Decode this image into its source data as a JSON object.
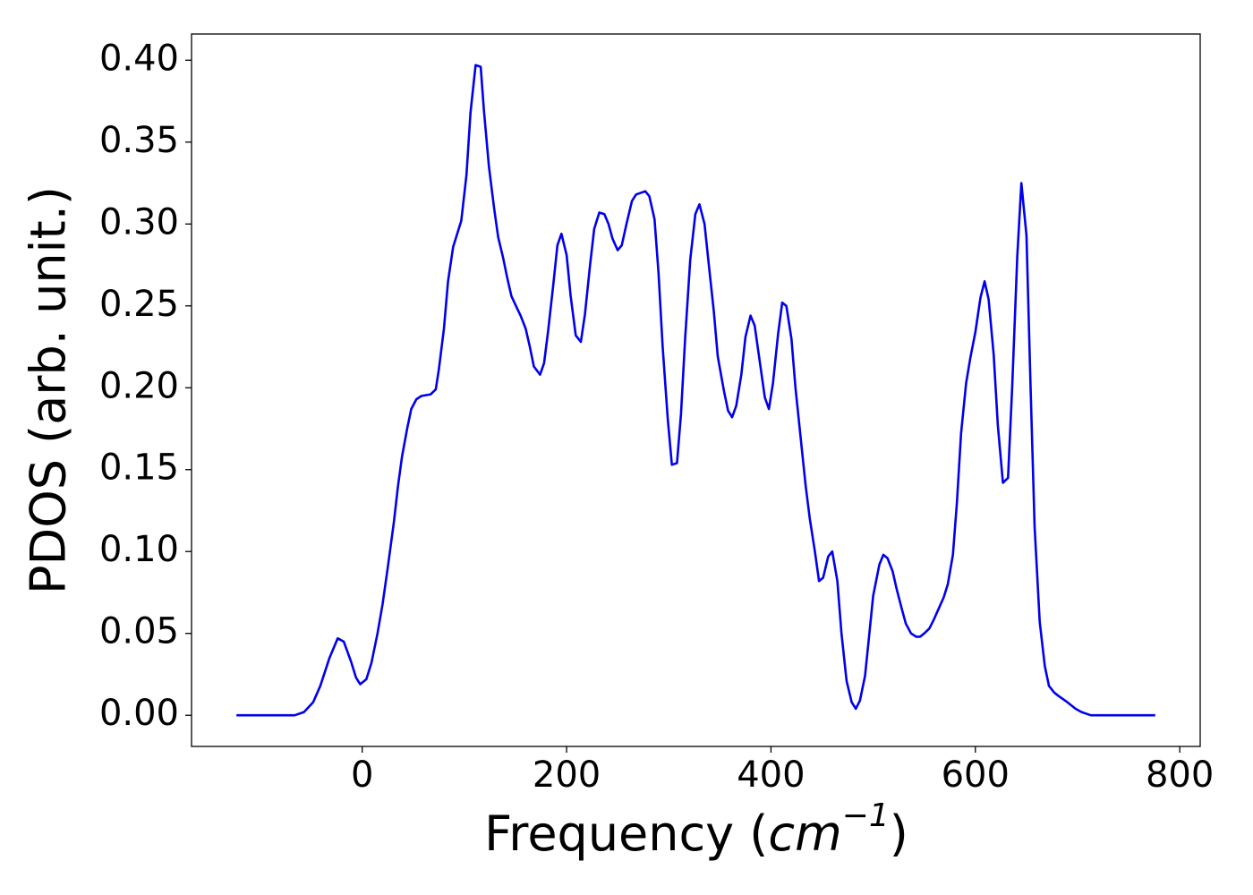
{
  "chart_data": {
    "type": "line",
    "xlabel": [
      "Frequency (",
      "cm",
      "−1",
      ")"
    ],
    "ylabel": "PDOS (arb. unit.)",
    "xlim": [
      -167,
      820
    ],
    "ylim": [
      -0.019,
      0.416
    ],
    "xticks": [
      0,
      200,
      400,
      600,
      800
    ],
    "yticks": [
      {
        "value": 0,
        "label": "0.00"
      },
      {
        "value": 0.05,
        "label": "0.05"
      },
      {
        "value": 0.1,
        "label": "0.10"
      },
      {
        "value": 0.15,
        "label": "0.15"
      },
      {
        "value": 0.2,
        "label": "0.20"
      },
      {
        "value": 0.25,
        "label": "0.25"
      },
      {
        "value": 0.3,
        "label": "0.30"
      },
      {
        "value": 0.35,
        "label": "0.35"
      },
      {
        "value": 0.4,
        "label": "0.40"
      }
    ],
    "grid": false,
    "series": [
      {
        "color": "#0000ee",
        "x": [
          -123,
          -66,
          -57,
          -48,
          -41,
          -32,
          -24,
          -18,
          -11,
          -6,
          -2,
          4,
          9,
          15,
          20,
          25,
          31,
          35,
          39,
          44,
          48,
          53,
          58,
          67,
          72,
          75,
          80,
          84,
          89,
          97,
          102,
          106,
          111,
          116,
          119,
          124,
          129,
          133,
          138,
          142,
          146,
          152,
          155,
          160,
          164,
          168,
          174,
          178,
          182,
          187,
          191,
          195,
          200,
          204,
          209,
          214,
          218,
          223,
          227,
          232,
          237,
          241,
          245,
          250,
          254,
          259,
          264,
          268,
          277,
          281,
          286,
          290,
          294,
          299,
          303,
          308,
          312,
          316,
          321,
          326,
          330,
          335,
          339,
          344,
          348,
          354,
          358,
          362,
          366,
          371,
          375,
          380,
          384,
          389,
          394,
          398,
          402,
          407,
          411,
          415,
          420,
          424,
          429,
          434,
          438,
          443,
          447,
          451,
          456,
          460,
          465,
          469,
          474,
          479,
          483,
          487,
          492,
          496,
          500,
          506,
          510,
          514,
          519,
          523,
          528,
          532,
          537,
          542,
          546,
          550,
          555,
          559,
          564,
          569,
          573,
          578,
          582,
          586,
          591,
          595,
          600,
          605,
          609,
          613,
          618,
          622,
          627,
          632,
          636,
          641,
          645,
          650,
          654,
          658,
          663,
          668,
          672,
          677,
          681,
          690,
          698,
          704,
          713,
          776
        ],
        "values": [
          0,
          0,
          0.002,
          0.008,
          0.018,
          0.035,
          0.047,
          0.045,
          0.033,
          0.023,
          0.019,
          0.022,
          0.032,
          0.05,
          0.068,
          0.09,
          0.118,
          0.14,
          0.158,
          0.175,
          0.187,
          0.193,
          0.195,
          0.196,
          0.199,
          0.211,
          0.236,
          0.265,
          0.286,
          0.302,
          0.33,
          0.368,
          0.397,
          0.396,
          0.37,
          0.335,
          0.31,
          0.292,
          0.279,
          0.267,
          0.256,
          0.248,
          0.244,
          0.236,
          0.225,
          0.213,
          0.208,
          0.215,
          0.235,
          0.263,
          0.287,
          0.294,
          0.281,
          0.256,
          0.232,
          0.228,
          0.245,
          0.275,
          0.297,
          0.307,
          0.306,
          0.3,
          0.291,
          0.284,
          0.287,
          0.301,
          0.314,
          0.318,
          0.32,
          0.317,
          0.303,
          0.27,
          0.225,
          0.181,
          0.153,
          0.154,
          0.184,
          0.23,
          0.278,
          0.306,
          0.312,
          0.3,
          0.276,
          0.247,
          0.219,
          0.198,
          0.186,
          0.182,
          0.189,
          0.208,
          0.231,
          0.244,
          0.238,
          0.216,
          0.194,
          0.187,
          0.203,
          0.233,
          0.252,
          0.25,
          0.23,
          0.2,
          0.17,
          0.14,
          0.12,
          0.1,
          0.082,
          0.084,
          0.097,
          0.1,
          0.082,
          0.05,
          0.021,
          0.008,
          0.004,
          0.009,
          0.024,
          0.048,
          0.073,
          0.092,
          0.098,
          0.096,
          0.088,
          0.077,
          0.065,
          0.056,
          0.05,
          0.048,
          0.048,
          0.05,
          0.053,
          0.058,
          0.065,
          0.072,
          0.08,
          0.098,
          0.13,
          0.172,
          0.203,
          0.218,
          0.234,
          0.255,
          0.265,
          0.254,
          0.22,
          0.177,
          0.142,
          0.145,
          0.2,
          0.28,
          0.325,
          0.293,
          0.2,
          0.115,
          0.057,
          0.03,
          0.018,
          0.014,
          0.012,
          0.008,
          0.004,
          0.002,
          0,
          0
        ]
      }
    ]
  }
}
